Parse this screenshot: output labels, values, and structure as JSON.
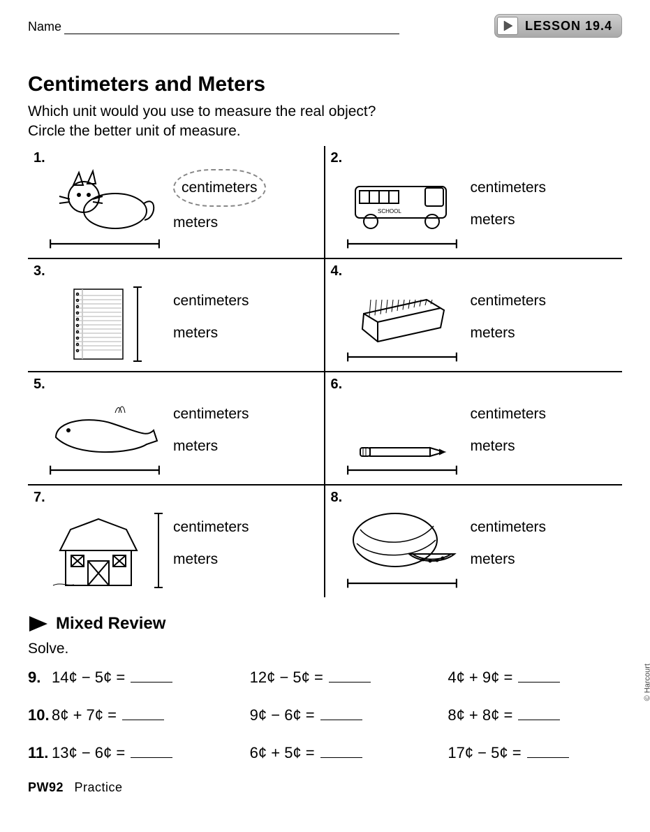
{
  "header": {
    "name_label": "Name",
    "lesson_label": "LESSON 19.4"
  },
  "title": "Centimeters and Meters",
  "instructions": "Which unit would you use to measure the real object?\nCircle the better unit of measure.",
  "choices": {
    "a": "centimeters",
    "b": "meters"
  },
  "questions": [
    {
      "num": "1.",
      "object": "cat",
      "circled": "a",
      "measure_dir": "h"
    },
    {
      "num": "2.",
      "object": "school bus",
      "circled": null,
      "measure_dir": "h"
    },
    {
      "num": "3.",
      "object": "notebook",
      "circled": null,
      "measure_dir": "v"
    },
    {
      "num": "4.",
      "object": "eraser",
      "circled": null,
      "measure_dir": "h"
    },
    {
      "num": "5.",
      "object": "whale",
      "circled": null,
      "measure_dir": "h"
    },
    {
      "num": "6.",
      "object": "pencil",
      "circled": null,
      "measure_dir": "h"
    },
    {
      "num": "7.",
      "object": "barn",
      "circled": null,
      "measure_dir": "v"
    },
    {
      "num": "8.",
      "object": "watermelon",
      "circled": null,
      "measure_dir": "h"
    }
  ],
  "mixed_review": {
    "heading": "Mixed Review",
    "solve": "Solve.",
    "rows": [
      {
        "num": "9.",
        "items": [
          "14¢ − 5¢ =",
          "12¢ − 5¢ =",
          "4¢ + 9¢ ="
        ]
      },
      {
        "num": "10.",
        "items": [
          "8¢ + 7¢ =",
          "9¢ − 6¢ =",
          "8¢ + 8¢ ="
        ]
      },
      {
        "num": "11.",
        "items": [
          "13¢ − 6¢ =",
          "6¢ + 5¢ =",
          "17¢ − 5¢ ="
        ]
      }
    ]
  },
  "footer": {
    "code": "PW92",
    "label": "Practice"
  },
  "copyright": "© Harcourt"
}
